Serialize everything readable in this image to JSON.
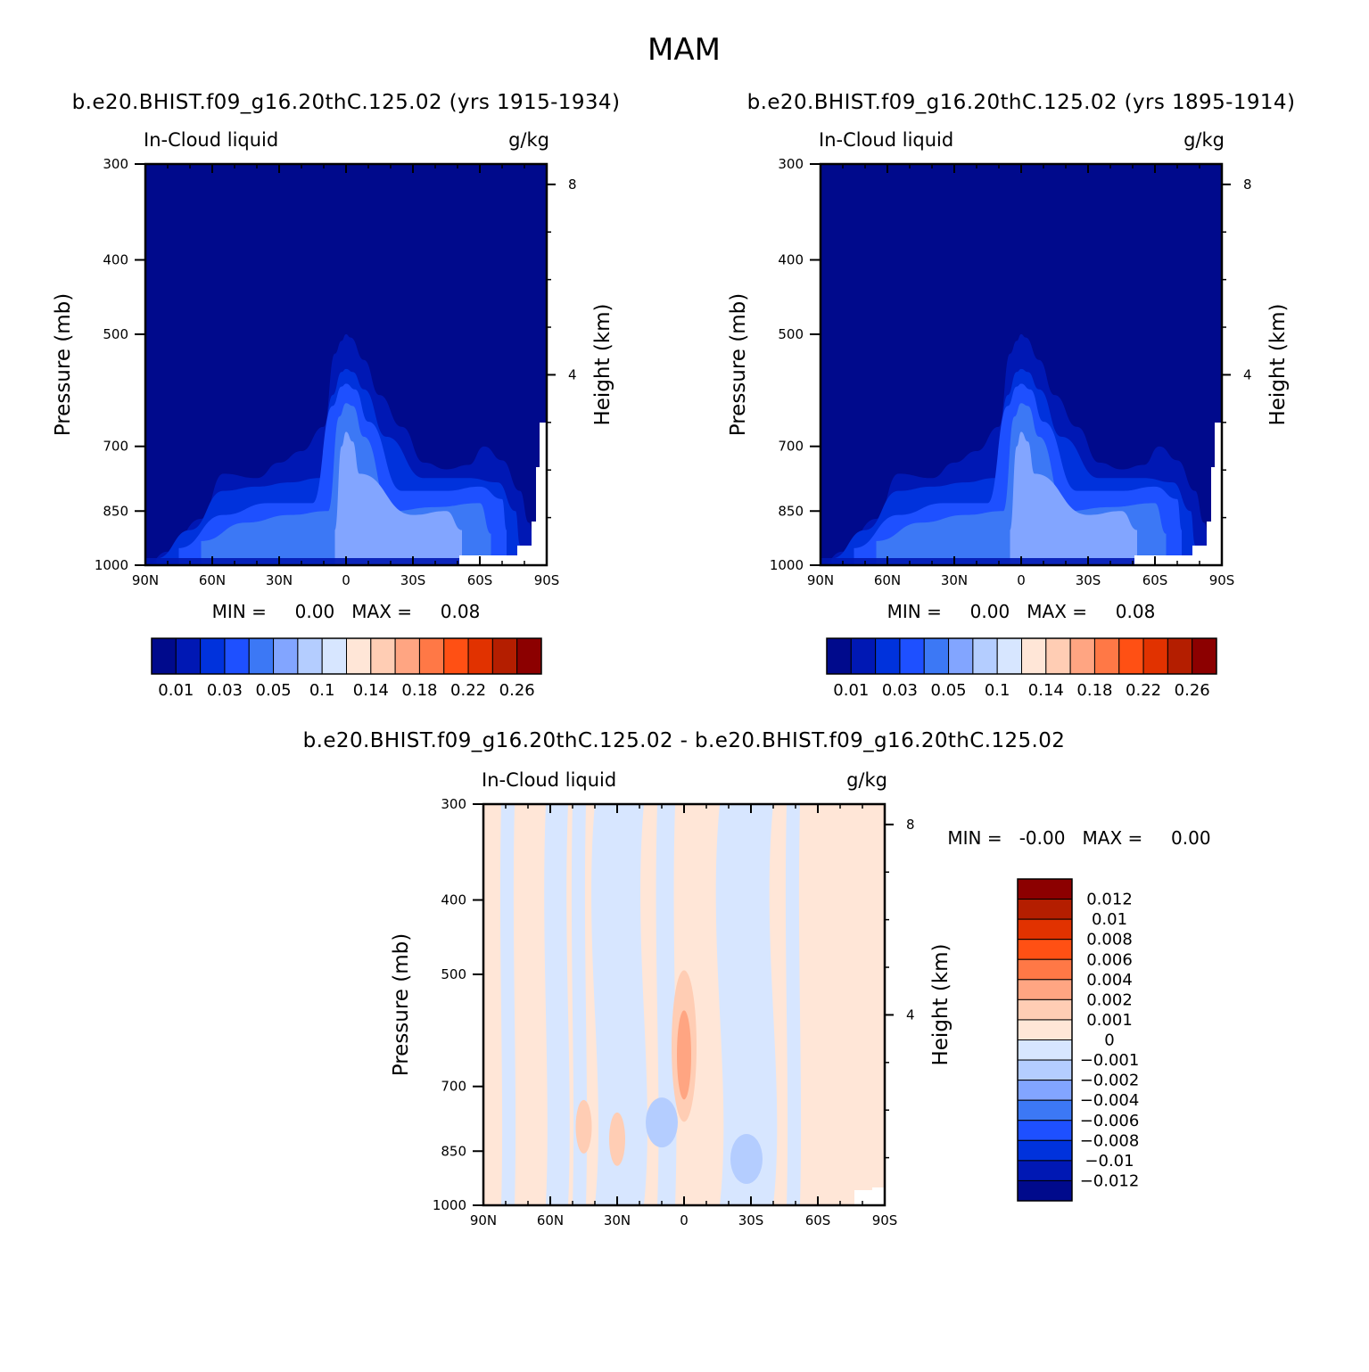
{
  "figure": {
    "title": "MAM"
  },
  "chart_data": [
    {
      "type": "heatmap",
      "id": "panel_a",
      "title": "b.e20.BHIST.f09_g16.20thC.125.02 (yrs 1915-1934)",
      "left_label": "In-Cloud liquid",
      "right_label": "g/kg",
      "xlabel": "",
      "ylabel": "Pressure (mb)",
      "y2label": "Height (km)",
      "x_ticks": [
        "90N",
        "60N",
        "30N",
        "0",
        "30S",
        "60S",
        "90S"
      ],
      "x_tick_values": [
        90,
        60,
        30,
        0,
        -30,
        -60,
        -90
      ],
      "y_ticks": [
        300,
        400,
        500,
        700,
        850,
        1000
      ],
      "y2_ticks": [
        8,
        4
      ],
      "ylim": [
        1000,
        300
      ],
      "xlim": [
        90,
        -90
      ],
      "min_max_text": "MIN =     0.00   MAX =     0.08",
      "colorbar": {
        "orientation": "horizontal",
        "colors": [
          "#000a8c",
          "#0018b4",
          "#0032dc",
          "#1e50ff",
          "#3c78f5",
          "#82a5ff",
          "#b4cdff",
          "#d7e6ff",
          "#ffe6d7",
          "#ffcdb4",
          "#ffa582",
          "#ff7846",
          "#ff5014",
          "#e13200",
          "#b41e00",
          "#8c0000"
        ],
        "labels": [
          "0.01",
          "0.03",
          "0.05",
          "0.1",
          "0.14",
          "0.18",
          "0.22",
          "0.26"
        ]
      },
      "contours": [
        {
          "level": 0.01,
          "lat": [
            90,
            80,
            65,
            55,
            40,
            30,
            20,
            10,
            5,
            2,
            0,
            -2,
            -8,
            -15,
            -25,
            -35,
            -45,
            -55,
            -62,
            -70,
            -78,
            -82,
            -85
          ],
          "p": [
            1000,
            960,
            870,
            760,
            770,
            735,
            710,
            660,
            530,
            510,
            500,
            505,
            540,
            600,
            660,
            735,
            750,
            740,
            700,
            730,
            800,
            880,
            960
          ]
        },
        {
          "level": 0.02,
          "lat": [
            85,
            70,
            55,
            40,
            25,
            12,
            6,
            2,
            0,
            -3,
            -8,
            -18,
            -35,
            -55,
            -68,
            -76,
            -78
          ],
          "p": [
            980,
            900,
            800,
            790,
            780,
            770,
            600,
            560,
            555,
            560,
            590,
            680,
            770,
            770,
            780,
            850,
            940
          ]
        },
        {
          "level": 0.03,
          "lat": [
            75,
            55,
            35,
            15,
            6,
            2,
            0,
            -4,
            -10,
            -25,
            -45,
            -60,
            -70,
            -72
          ],
          "p": [
            950,
            860,
            830,
            830,
            620,
            585,
            580,
            590,
            650,
            800,
            800,
            790,
            820,
            900
          ]
        },
        {
          "level": 0.05,
          "lat": [
            65,
            45,
            25,
            8,
            3,
            0,
            -3,
            -8,
            -20,
            -40,
            -60,
            -65
          ],
          "p": [
            930,
            880,
            860,
            850,
            640,
            615,
            620,
            680,
            850,
            840,
            830,
            910
          ]
        },
        {
          "level": 0.08,
          "lat": [
            5,
            2,
            0,
            -3,
            -6,
            -30,
            -45,
            -52
          ],
          "p": [
            900,
            700,
            670,
            690,
            760,
            860,
            850,
            900
          ]
        }
      ]
    },
    {
      "type": "heatmap",
      "id": "panel_b",
      "title": "b.e20.BHIST.f09_g16.20thC.125.02 (yrs 1895-1914)",
      "left_label": "In-Cloud liquid",
      "right_label": "g/kg",
      "xlabel": "",
      "ylabel": "Pressure (mb)",
      "y2label": "Height (km)",
      "x_ticks": [
        "90N",
        "60N",
        "30N",
        "0",
        "30S",
        "60S",
        "90S"
      ],
      "x_tick_values": [
        90,
        60,
        30,
        0,
        -30,
        -60,
        -90
      ],
      "y_ticks": [
        300,
        400,
        500,
        700,
        850,
        1000
      ],
      "y2_ticks": [
        8,
        4
      ],
      "ylim": [
        1000,
        300
      ],
      "xlim": [
        90,
        -90
      ],
      "min_max_text": "MIN =     0.00   MAX =     0.08",
      "colorbar": {
        "orientation": "horizontal",
        "colors": [
          "#000a8c",
          "#0018b4",
          "#0032dc",
          "#1e50ff",
          "#3c78f5",
          "#82a5ff",
          "#b4cdff",
          "#d7e6ff",
          "#ffe6d7",
          "#ffcdb4",
          "#ffa582",
          "#ff7846",
          "#ff5014",
          "#e13200",
          "#b41e00",
          "#8c0000"
        ],
        "labels": [
          "0.01",
          "0.03",
          "0.05",
          "0.1",
          "0.14",
          "0.18",
          "0.22",
          "0.26"
        ]
      }
    },
    {
      "type": "heatmap",
      "id": "panel_diff",
      "title": "b.e20.BHIST.f09_g16.20thC.125.02 - b.e20.BHIST.f09_g16.20thC.125.02",
      "left_label": "In-Cloud liquid",
      "right_label": "g/kg",
      "xlabel": "",
      "ylabel": "Pressure (mb)",
      "y2label": "Height (km)",
      "x_ticks": [
        "90N",
        "60N",
        "30N",
        "0",
        "30S",
        "60S",
        "90S"
      ],
      "x_tick_values": [
        90,
        60,
        30,
        0,
        -30,
        -60,
        -90
      ],
      "y_ticks": [
        300,
        400,
        500,
        700,
        850,
        1000
      ],
      "y2_ticks": [
        8,
        4
      ],
      "ylim": [
        1000,
        300
      ],
      "xlim": [
        90,
        -90
      ],
      "min_max_text": "MIN =   -0.00   MAX =     0.00",
      "colorbar": {
        "orientation": "vertical",
        "colors": [
          "#8c0000",
          "#b41e00",
          "#e13200",
          "#ff5014",
          "#ff7846",
          "#ffa582",
          "#ffcdb4",
          "#ffe6d7",
          "#d7e6ff",
          "#b4cdff",
          "#82a5ff",
          "#3c78f5",
          "#1e50ff",
          "#0032dc",
          "#0018b4",
          "#000a8c"
        ],
        "labels": [
          "0.012",
          "0.01",
          "0.008",
          "0.006",
          "0.004",
          "0.002",
          "0.001",
          "0",
          "-0.001",
          "-0.002",
          "-0.004",
          "-0.006",
          "-0.008",
          "-0.01",
          "-0.012"
        ]
      },
      "negative_regions_lat": [
        [
          82,
          76
        ],
        [
          62,
          52
        ],
        [
          50,
          44
        ],
        [
          40,
          18
        ],
        [
          12,
          4
        ],
        [
          -16,
          -40
        ],
        [
          -46,
          -52
        ]
      ],
      "positive_regions_lat": [
        [
          90,
          82
        ],
        [
          76,
          62
        ],
        [
          52,
          50
        ],
        [
          44,
          40
        ],
        [
          18,
          12
        ],
        [
          4,
          -16
        ],
        [
          -40,
          -46
        ],
        [
          -52,
          -85
        ]
      ],
      "maxima": [
        {
          "lat": 0,
          "p": 620,
          "value": 0.002
        },
        {
          "lat": 45,
          "p": 790,
          "value": 0.001
        },
        {
          "lat": 30,
          "p": 820,
          "value": 0.001
        }
      ],
      "minima": [
        {
          "lat": 10,
          "p": 780,
          "value": -0.001
        },
        {
          "lat": -28,
          "p": 870,
          "value": -0.001
        }
      ]
    }
  ]
}
